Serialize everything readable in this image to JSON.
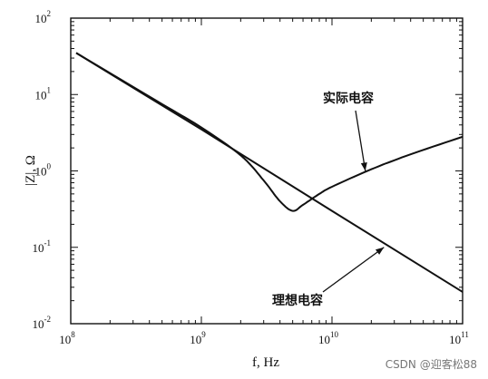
{
  "chart_data": {
    "type": "line",
    "xscale": "log",
    "yscale": "log",
    "xlim": [
      100000000.0,
      100000000000.0
    ],
    "ylim": [
      0.01,
      100
    ],
    "xlabel": "f, Hz",
    "ylabel": "|Z|, Ω",
    "grid": false,
    "x_ticks": [
      {
        "base": "10",
        "exp": "8",
        "value": 100000000.0
      },
      {
        "base": "10",
        "exp": "9",
        "value": 1000000000.0
      },
      {
        "base": "10",
        "exp": "10",
        "value": 10000000000.0
      },
      {
        "base": "10",
        "exp": "11",
        "value": 100000000000.0
      }
    ],
    "y_ticks": [
      {
        "base": "10",
        "exp": "-2",
        "value": 0.01
      },
      {
        "base": "10",
        "exp": "-1",
        "value": 0.1
      },
      {
        "base": "10",
        "exp": "0",
        "value": 1
      },
      {
        "base": "10",
        "exp": "1",
        "value": 10
      },
      {
        "base": "10",
        "exp": "2",
        "value": 100
      }
    ],
    "series": [
      {
        "name": "理想电容",
        "x": [
          110000000.0,
          1000000000.0,
          10000000000.0,
          100000000000.0
        ],
        "y": [
          35,
          3.5,
          0.3,
          0.026
        ]
      },
      {
        "name": "实际电容",
        "x": [
          110000000.0,
          500000000.0,
          1000000000.0,
          2000000000.0,
          3000000000.0,
          4000000000.0,
          5000000000.0,
          6000000000.0,
          8000000000.0,
          10000000000.0,
          20000000000.0,
          40000000000.0,
          100000000000.0
        ],
        "y": [
          35,
          7.5,
          3.7,
          1.6,
          0.75,
          0.4,
          0.3,
          0.36,
          0.5,
          0.62,
          1.05,
          1.65,
          2.8
        ]
      }
    ],
    "annotations": [
      {
        "text": "实际电容",
        "arrow_to": {
          "x": 18000000000.0,
          "y": 1.0
        }
      },
      {
        "text": "理想电容",
        "arrow_to": {
          "x": 25000000000.0,
          "y": 0.1
        }
      }
    ]
  },
  "watermark": "CSDN @迎客松88"
}
